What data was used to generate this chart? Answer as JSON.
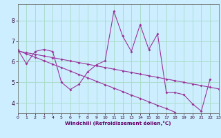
{
  "xlabel": "Windchill (Refroidissement éolien,°C)",
  "background_color": "#cceeff",
  "grid_color": "#aaddcc",
  "line_color": "#993399",
  "x_data": [
    0,
    1,
    2,
    3,
    4,
    5,
    6,
    7,
    8,
    9,
    10,
    11,
    12,
    13,
    14,
    15,
    16,
    17,
    18,
    19,
    20,
    21,
    22,
    23
  ],
  "y_main": [
    6.6,
    5.9,
    6.5,
    6.6,
    6.5,
    5.0,
    4.65,
    4.9,
    5.5,
    5.85,
    6.05,
    8.45,
    7.25,
    6.5,
    7.8,
    6.6,
    7.35,
    4.5,
    4.5,
    4.4,
    3.95,
    3.6,
    5.15,
    null
  ],
  "y_trend_steep": [
    6.55,
    6.38,
    6.22,
    6.05,
    5.88,
    5.72,
    5.55,
    5.38,
    5.22,
    5.05,
    4.88,
    4.72,
    4.55,
    4.38,
    4.22,
    4.05,
    3.88,
    3.72,
    3.55,
    null,
    null,
    null,
    null,
    null
  ],
  "y_trend_flat": [
    6.52,
    6.44,
    6.36,
    6.28,
    6.2,
    6.12,
    6.04,
    5.96,
    5.88,
    5.8,
    5.72,
    5.64,
    5.56,
    5.48,
    5.4,
    5.32,
    5.24,
    5.16,
    5.08,
    5.0,
    4.92,
    4.84,
    4.76,
    4.68
  ],
  "xlim": [
    0,
    23
  ],
  "ylim": [
    3.5,
    8.8
  ],
  "yticks": [
    4,
    5,
    6,
    7,
    8
  ],
  "xticks": [
    0,
    1,
    2,
    3,
    4,
    5,
    6,
    7,
    8,
    9,
    10,
    11,
    12,
    13,
    14,
    15,
    16,
    17,
    18,
    19,
    20,
    21,
    22,
    23
  ]
}
